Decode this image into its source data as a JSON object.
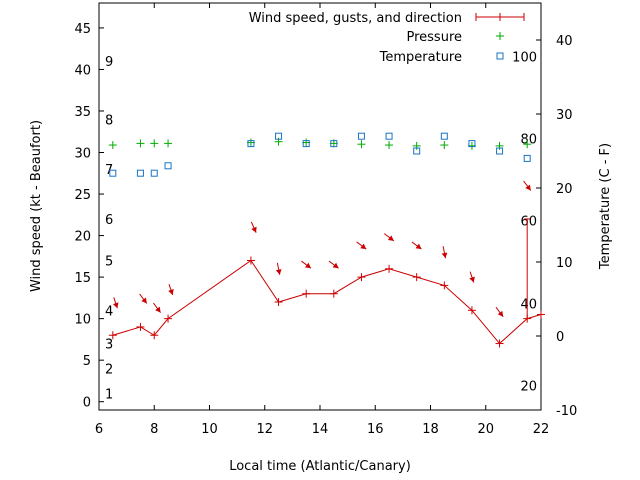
{
  "chart_data": {
    "type": "line",
    "xlabel": "Local time (Atlantic/Canary)",
    "ylabel_left": "Wind speed (kt - Beaufort)",
    "ylabel_right": "Temperature (C - F)",
    "x_range": [
      6,
      22
    ],
    "y_left_range": [
      -1,
      48
    ],
    "y_right_range": [
      -10,
      45
    ],
    "x_ticks": [
      6,
      8,
      10,
      12,
      14,
      16,
      18,
      20,
      22
    ],
    "y_left_ticks": [
      0,
      5,
      10,
      15,
      20,
      25,
      30,
      35,
      40,
      45
    ],
    "y_right_ticks": [
      -10,
      0,
      10,
      20,
      30,
      40
    ],
    "beaufort_labels": [
      {
        "text": "1",
        "kt": 1
      },
      {
        "text": "2",
        "kt": 4
      },
      {
        "text": "3",
        "kt": 7
      },
      {
        "text": "4",
        "kt": 11
      },
      {
        "text": "5",
        "kt": 17
      },
      {
        "text": "6",
        "kt": 22
      },
      {
        "text": "7",
        "kt": 28
      },
      {
        "text": "8",
        "kt": 34
      },
      {
        "text": "9",
        "kt": 41
      }
    ],
    "fahrenheit_labels": [
      {
        "text": "20",
        "c": -6.7
      },
      {
        "text": "40",
        "c": 4.4
      },
      {
        "text": "60",
        "c": 15.6
      },
      {
        "text": "80",
        "c": 26.7
      },
      {
        "text": "100",
        "c": 37.8
      }
    ],
    "legend_position": "top-right",
    "series": [
      {
        "name": "Wind speed, gusts, and direction",
        "color": "#cc0000",
        "x": [
          6.5,
          7.5,
          8.0,
          8.5,
          11.5,
          12.5,
          13.5,
          14.5,
          15.5,
          16.5,
          17.5,
          18.5,
          19.5,
          20.5,
          21.5,
          22.0
        ],
        "y": [
          8,
          9,
          8,
          10,
          17,
          12,
          13,
          13,
          15,
          16,
          15,
          14,
          11,
          7,
          10,
          10.5
        ],
        "gust": {
          "x": 21.5,
          "from": 10,
          "to": 22
        },
        "direction_arrows": [
          {
            "x": 6.6,
            "kt": 11.9,
            "dx": 0.3,
            "dy": 0.9
          },
          {
            "x": 7.6,
            "kt": 12.4,
            "dx": 0.6,
            "dy": 0.8
          },
          {
            "x": 8.1,
            "kt": 11.3,
            "dx": 0.6,
            "dy": 0.8
          },
          {
            "x": 8.6,
            "kt": 13.5,
            "dx": 0.3,
            "dy": 0.9
          },
          {
            "x": 11.6,
            "kt": 21.0,
            "dx": 0.4,
            "dy": 0.9
          },
          {
            "x": 12.5,
            "kt": 16.0,
            "dx": 0.2,
            "dy": 1.0
          },
          {
            "x": 13.5,
            "kt": 16.5,
            "dx": 0.8,
            "dy": 0.6
          },
          {
            "x": 14.5,
            "kt": 16.5,
            "dx": 0.8,
            "dy": 0.6
          },
          {
            "x": 15.5,
            "kt": 18.8,
            "dx": 0.8,
            "dy": 0.6
          },
          {
            "x": 16.5,
            "kt": 19.8,
            "dx": 0.8,
            "dy": 0.6
          },
          {
            "x": 17.5,
            "kt": 18.8,
            "dx": 0.8,
            "dy": 0.6
          },
          {
            "x": 18.5,
            "kt": 18.0,
            "dx": 0.2,
            "dy": 1.0
          },
          {
            "x": 19.5,
            "kt": 15.0,
            "dx": 0.3,
            "dy": 0.9
          },
          {
            "x": 20.5,
            "kt": 10.8,
            "dx": 0.6,
            "dy": 0.8
          },
          {
            "x": 21.5,
            "kt": 26.0,
            "dx": 0.6,
            "dy": 0.8
          }
        ]
      },
      {
        "name": "Pressure",
        "color": "#00aa00",
        "x": [
          6.5,
          7.5,
          8.0,
          8.5,
          11.5,
          12.5,
          13.5,
          14.5,
          15.5,
          16.5,
          17.5,
          18.5,
          19.5,
          20.5,
          21.5
        ],
        "y": [
          30.9,
          31.1,
          31.1,
          31.1,
          31.2,
          31.3,
          31.2,
          31.1,
          31.0,
          30.9,
          30.8,
          30.9,
          30.8,
          30.8,
          31.0
        ]
      },
      {
        "name": "Temperature",
        "color": "#1a73c8",
        "axis": "right",
        "x": [
          6.5,
          7.5,
          8.0,
          8.5,
          11.5,
          12.5,
          13.5,
          14.5,
          15.5,
          16.5,
          17.5,
          18.5,
          19.5,
          20.5,
          21.5
        ],
        "y": [
          22,
          22,
          22,
          23,
          26,
          27,
          26,
          26,
          27,
          27,
          25,
          27,
          26,
          25,
          24
        ]
      }
    ]
  }
}
